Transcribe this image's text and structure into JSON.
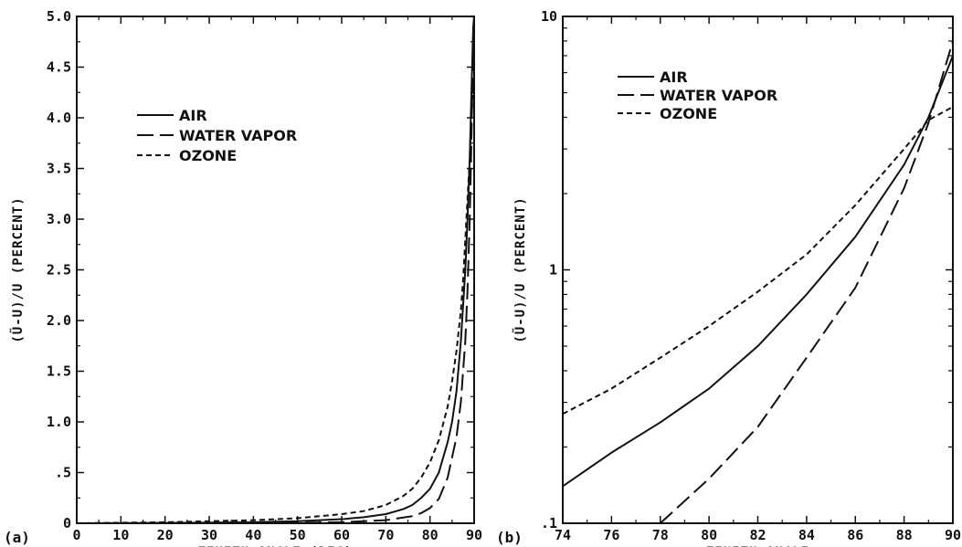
{
  "chart_data": [
    {
      "panel_label": "(a)",
      "type": "line",
      "xlabel": "ZENITH ANGLE (DEG)",
      "ylabel": "(Ũ-U)/U (PERCENT)",
      "xlim": [
        0,
        90
      ],
      "ylim": [
        0,
        5.0
      ],
      "yscale": "linear",
      "xticks": [
        0,
        10,
        20,
        30,
        40,
        50,
        60,
        70,
        80,
        90
      ],
      "xtick_labels": [
        "0",
        "10",
        "20",
        "30",
        "40",
        "50",
        "60",
        "70",
        "80",
        "90"
      ],
      "yticks": [
        0,
        0.5,
        1.0,
        1.5,
        2.0,
        2.5,
        3.0,
        3.5,
        4.0,
        4.5,
        5.0
      ],
      "ytick_labels": [
        "0",
        ".5",
        "1.0",
        "1.5",
        "2.0",
        "2.5",
        "3.0",
        "3.5",
        "4.0",
        "4.5",
        "5.0"
      ],
      "legend_position": "upper-left",
      "series": [
        {
          "name": "AIR",
          "dash": "solid",
          "x": [
            0,
            20,
            40,
            50,
            60,
            65,
            70,
            74,
            76,
            78,
            80,
            82,
            84,
            85,
            86,
            87,
            88,
            88.5,
            89,
            89.3,
            89.6,
            89.8,
            90
          ],
          "y": [
            0,
            0.003,
            0.01,
            0.02,
            0.04,
            0.06,
            0.09,
            0.14,
            0.18,
            0.25,
            0.34,
            0.5,
            0.8,
            1.0,
            1.3,
            1.8,
            2.5,
            3.0,
            3.6,
            4.1,
            4.6,
            4.9,
            5.0
          ]
        },
        {
          "name": "WATER VAPOR",
          "dash": "long-dash",
          "x": [
            0,
            40,
            60,
            70,
            76,
            78,
            80,
            82,
            84,
            86,
            87,
            88,
            88.5,
            89,
            89.3,
            89.6,
            90
          ],
          "y": [
            0,
            0.003,
            0.01,
            0.03,
            0.07,
            0.1,
            0.15,
            0.24,
            0.45,
            0.85,
            1.2,
            1.8,
            2.3,
            3.0,
            3.6,
            4.3,
            5.0
          ]
        },
        {
          "name": "OZONE",
          "dash": "short-dash",
          "x": [
            0,
            20,
            40,
            50,
            60,
            65,
            70,
            74,
            76,
            78,
            80,
            82,
            84,
            85,
            86,
            87,
            87.5,
            88,
            88.5,
            89,
            89.5,
            90
          ],
          "y": [
            0,
            0.01,
            0.03,
            0.05,
            0.09,
            0.12,
            0.18,
            0.27,
            0.34,
            0.45,
            0.6,
            0.82,
            1.15,
            1.4,
            1.7,
            2.1,
            2.4,
            2.8,
            3.2,
            3.6,
            4.1,
            4.4
          ]
        }
      ]
    },
    {
      "panel_label": "(b)",
      "type": "line",
      "xlabel": "ZENITH ANGLE",
      "ylabel": "(Ũ-U)/U (PERCENT)",
      "xlim": [
        74,
        90
      ],
      "ylim": [
        0.1,
        10
      ],
      "yscale": "log",
      "xticks": [
        74,
        76,
        78,
        80,
        82,
        84,
        86,
        88,
        90
      ],
      "xtick_labels": [
        "74",
        "76",
        "78",
        "80",
        "82",
        "84",
        "86",
        "88",
        "90"
      ],
      "yticks": [
        0.1,
        1,
        10
      ],
      "ytick_labels": [
        ".1",
        "1",
        "10"
      ],
      "legend_position": "upper-left",
      "series": [
        {
          "name": "AIR",
          "dash": "solid",
          "x": [
            74,
            76,
            78,
            80,
            82,
            84,
            86,
            88,
            89,
            90
          ],
          "y": [
            0.14,
            0.19,
            0.25,
            0.34,
            0.5,
            0.8,
            1.35,
            2.6,
            4.0,
            7.0
          ]
        },
        {
          "name": "WATER VAPOR",
          "dash": "long-dash",
          "x": [
            78,
            80,
            82,
            84,
            86,
            88,
            89,
            90
          ],
          "y": [
            0.1,
            0.15,
            0.24,
            0.45,
            0.85,
            2.1,
            3.8,
            8.0
          ]
        },
        {
          "name": "OZONE",
          "dash": "short-dash",
          "x": [
            74,
            76,
            78,
            80,
            82,
            84,
            86,
            88,
            89,
            90
          ],
          "y": [
            0.27,
            0.34,
            0.45,
            0.6,
            0.82,
            1.15,
            1.8,
            3.0,
            3.9,
            4.4
          ]
        }
      ]
    }
  ]
}
